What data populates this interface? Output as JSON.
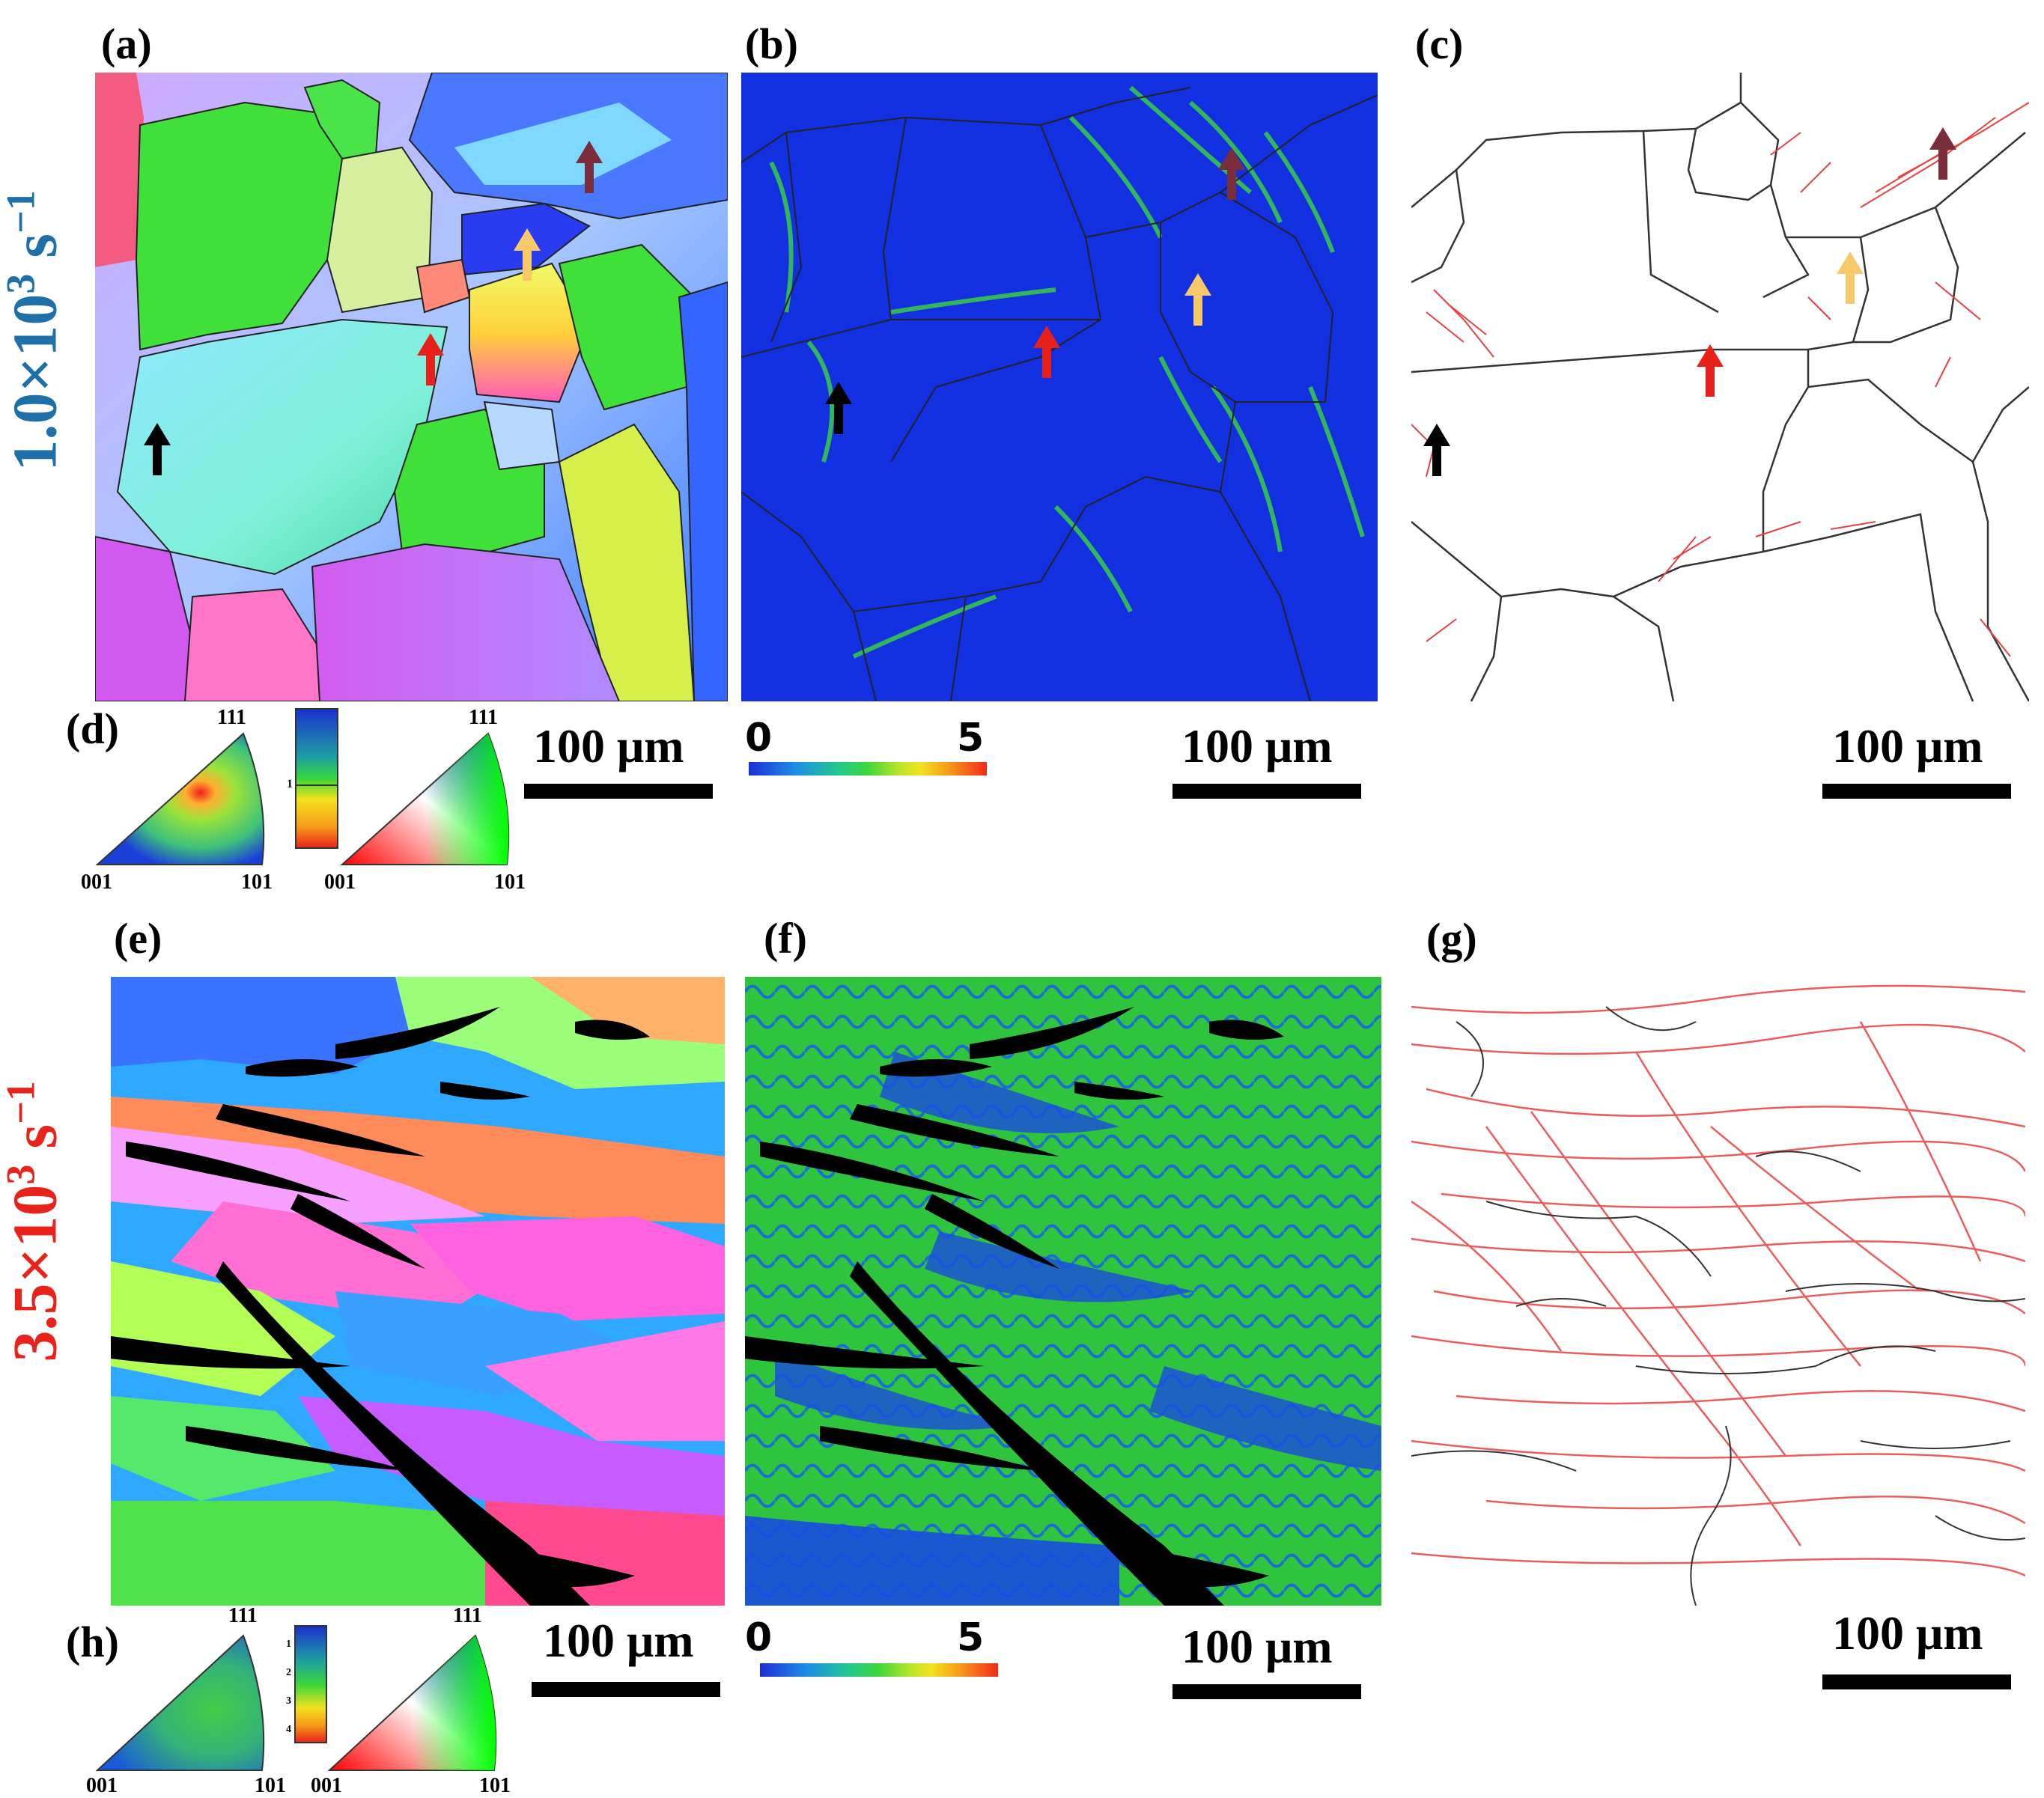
{
  "panels": {
    "a": "(a)",
    "b": "(b)",
    "c": "(c)",
    "d": "(d)",
    "e": "(e)",
    "f": "(f)",
    "g": "(g)",
    "h": "(h)"
  },
  "rates": {
    "top": {
      "mantissa": "1.0×10",
      "exp": "3",
      "unit": " s",
      "unit_exp": "−1",
      "color": "#1f6fa8"
    },
    "bottom": {
      "mantissa": "3.5×10",
      "exp": "3",
      "unit": " s",
      "unit_exp": "−1",
      "color": "#e8231c"
    }
  },
  "scale_bar_label": "100 μm",
  "kam_colorbar": {
    "min": "0",
    "max": "5"
  },
  "ipf": {
    "v111": "111",
    "v001": "001",
    "v101": "101"
  },
  "pf_legend_top": {
    "tick": "1"
  },
  "pf_legend_bottom": {
    "ticks": [
      "1",
      "2",
      "3",
      "4"
    ]
  },
  "arrow_colors": {
    "black": "#000000",
    "red": "#e8201a",
    "yellow": "#f7c96a",
    "purple": "#7a2d3a"
  }
}
